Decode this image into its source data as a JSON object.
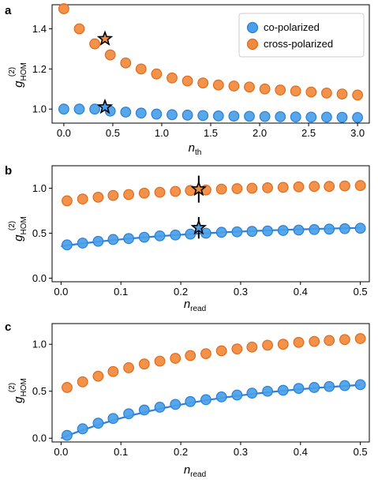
{
  "colors": {
    "co": "#4a9fe8",
    "co_edge": "#2a7fd4",
    "cross": "#f28a3c",
    "cross_edge": "#e06a1c",
    "fit": "#2b7fe0"
  },
  "legend": {
    "co_label": "co-polarized",
    "cross_label": "cross-polarized"
  },
  "chart_data": [
    {
      "panel": "a",
      "type": "scatter",
      "xlabel_main": "n",
      "xlabel_sub": "th",
      "ylabel_main": "g",
      "ylabel_sup": "(2)",
      "ylabel_sub": "HOM",
      "xlim": [
        -0.12,
        3.12
      ],
      "ylim": [
        0.93,
        1.52
      ],
      "xticks": [
        0.0,
        0.5,
        1.0,
        1.5,
        2.0,
        2.5,
        3.0
      ],
      "xtick_labels": [
        "0.0",
        "0.5",
        "1.0",
        "1.5",
        "2.0",
        "2.5",
        "3.0"
      ],
      "yticks": [
        1.0,
        1.2,
        1.4
      ],
      "ytick_labels": [
        "1.0",
        "1.2",
        "1.4"
      ],
      "legend_position": "top-right",
      "series": [
        {
          "name": "cross-polarized",
          "color_key": "cross",
          "x": [
            0.0,
            0.158,
            0.316,
            0.474,
            0.632,
            0.789,
            0.947,
            1.105,
            1.263,
            1.421,
            1.579,
            1.737,
            1.895,
            2.053,
            2.211,
            2.368,
            2.526,
            2.684,
            2.842,
            3.0
          ],
          "y": [
            1.5,
            1.4,
            1.325,
            1.27,
            1.23,
            1.2,
            1.175,
            1.155,
            1.14,
            1.13,
            1.12,
            1.115,
            1.11,
            1.1,
            1.095,
            1.09,
            1.085,
            1.08,
            1.075,
            1.07
          ]
        },
        {
          "name": "co-polarized",
          "color_key": "co",
          "x": [
            0.0,
            0.158,
            0.316,
            0.474,
            0.632,
            0.789,
            0.947,
            1.105,
            1.263,
            1.421,
            1.579,
            1.737,
            1.895,
            2.053,
            2.211,
            2.368,
            2.526,
            2.684,
            2.842,
            3.0
          ],
          "y": [
            1.0,
            1.0,
            1.0,
            0.99,
            0.985,
            0.98,
            0.975,
            0.972,
            0.97,
            0.968,
            0.966,
            0.965,
            0.964,
            0.963,
            0.962,
            0.961,
            0.96,
            0.96,
            0.959,
            0.958
          ]
        }
      ],
      "stars": [
        {
          "x": 0.42,
          "y": 1.35,
          "color_key": "cross"
        },
        {
          "x": 0.42,
          "y": 1.01,
          "color_key": "co"
        }
      ]
    },
    {
      "panel": "b",
      "type": "scatter",
      "xlabel_main": "n",
      "xlabel_sub": "read",
      "ylabel_main": "g",
      "ylabel_sup": "(2)",
      "ylabel_sub": "HOM",
      "xlim": [
        -0.015,
        0.515
      ],
      "ylim": [
        -0.04,
        1.25
      ],
      "xticks": [
        0.0,
        0.1,
        0.2,
        0.3,
        0.4,
        0.5
      ],
      "xtick_labels": [
        "0.0",
        "0.1",
        "0.2",
        "0.3",
        "0.4",
        "0.5"
      ],
      "yticks": [
        0.0,
        0.5,
        1.0
      ],
      "ytick_labels": [
        "0.0",
        "0.5",
        "1.0"
      ],
      "series": [
        {
          "name": "cross-polarized",
          "color_key": "cross",
          "x": [
            0.01,
            0.036,
            0.062,
            0.087,
            0.113,
            0.139,
            0.165,
            0.191,
            0.216,
            0.242,
            0.268,
            0.294,
            0.319,
            0.345,
            0.371,
            0.397,
            0.423,
            0.448,
            0.474,
            0.5
          ],
          "y": [
            0.86,
            0.88,
            0.9,
            0.92,
            0.93,
            0.945,
            0.955,
            0.965,
            0.975,
            0.98,
            0.99,
            0.995,
            1.0,
            1.005,
            1.01,
            1.015,
            1.02,
            1.02,
            1.025,
            1.03
          ]
        },
        {
          "name": "co-polarized",
          "color_key": "co",
          "x": [
            0.01,
            0.036,
            0.062,
            0.087,
            0.113,
            0.139,
            0.165,
            0.191,
            0.216,
            0.242,
            0.268,
            0.294,
            0.319,
            0.345,
            0.371,
            0.397,
            0.423,
            0.448,
            0.474,
            0.5
          ],
          "y": [
            0.37,
            0.39,
            0.41,
            0.43,
            0.44,
            0.455,
            0.47,
            0.48,
            0.49,
            0.5,
            0.51,
            0.515,
            0.52,
            0.525,
            0.53,
            0.535,
            0.54,
            0.545,
            0.55,
            0.555
          ]
        }
      ],
      "fit": {
        "x0": 0.0,
        "x1": 0.5,
        "y0": 0.355,
        "k": 3.8,
        "amp": 0.24
      },
      "stars": [
        {
          "x": 0.23,
          "y": 0.99,
          "err": 0.15,
          "color_key": "cross"
        },
        {
          "x": 0.23,
          "y": 0.56,
          "err": 0.12,
          "color_key": "co"
        }
      ]
    },
    {
      "panel": "c",
      "type": "scatter",
      "xlabel_main": "n",
      "xlabel_sub": "read",
      "ylabel_main": "g",
      "ylabel_sup": "(2)",
      "ylabel_sub": "HOM",
      "xlim": [
        -0.015,
        0.515
      ],
      "ylim": [
        -0.04,
        1.22
      ],
      "xticks": [
        0.0,
        0.1,
        0.2,
        0.3,
        0.4,
        0.5
      ],
      "xtick_labels": [
        "0.0",
        "0.1",
        "0.2",
        "0.3",
        "0.4",
        "0.5"
      ],
      "yticks": [
        0.0,
        0.5,
        1.0
      ],
      "ytick_labels": [
        "0.0",
        "0.5",
        "1.0"
      ],
      "series": [
        {
          "name": "cross-polarized",
          "color_key": "cross",
          "x": [
            0.01,
            0.036,
            0.062,
            0.087,
            0.113,
            0.139,
            0.165,
            0.191,
            0.216,
            0.242,
            0.268,
            0.294,
            0.319,
            0.345,
            0.371,
            0.397,
            0.423,
            0.448,
            0.474,
            0.5
          ],
          "y": [
            0.54,
            0.6,
            0.66,
            0.71,
            0.75,
            0.79,
            0.82,
            0.85,
            0.88,
            0.9,
            0.93,
            0.95,
            0.97,
            0.99,
            1.0,
            1.02,
            1.03,
            1.04,
            1.05,
            1.06
          ]
        },
        {
          "name": "co-polarized",
          "color_key": "co",
          "x": [
            0.01,
            0.036,
            0.062,
            0.087,
            0.113,
            0.139,
            0.165,
            0.191,
            0.216,
            0.242,
            0.268,
            0.294,
            0.319,
            0.345,
            0.371,
            0.397,
            0.423,
            0.448,
            0.474,
            0.5
          ],
          "y": [
            0.03,
            0.1,
            0.16,
            0.21,
            0.26,
            0.3,
            0.33,
            0.36,
            0.39,
            0.41,
            0.44,
            0.46,
            0.48,
            0.5,
            0.51,
            0.53,
            0.54,
            0.55,
            0.56,
            0.57
          ]
        }
      ],
      "fit": {
        "x0": 0.0,
        "x1": 0.5,
        "y0": 0.0,
        "k": 3.9,
        "amp": 0.66
      }
    }
  ]
}
